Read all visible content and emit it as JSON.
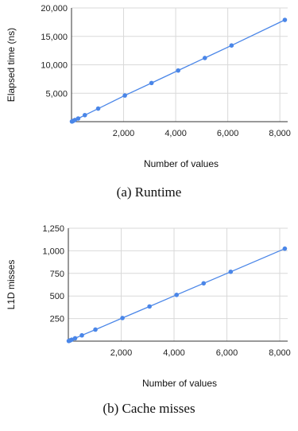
{
  "chart_data": [
    {
      "type": "line",
      "xlabel": "Number of values",
      "ylabel": "Elapsed time (ns)",
      "xlim": [
        0,
        8300
      ],
      "ylim": [
        0,
        20000
      ],
      "xticks": [
        2000,
        4000,
        6000,
        8000
      ],
      "xtick_labels": [
        "2,000",
        "4,000",
        "6,000",
        "8,000"
      ],
      "yticks": [
        5000,
        10000,
        15000,
        20000
      ],
      "ytick_labels": [
        "5,000",
        "10,000",
        "15,000",
        "20,000"
      ],
      "grid": true,
      "series": [
        {
          "color": "#4a86e8",
          "x": [
            16,
            32,
            64,
            128,
            256,
            512,
            1024,
            2048,
            3072,
            4096,
            5120,
            6144,
            8192
          ],
          "y": [
            30,
            70,
            140,
            290,
            560,
            1150,
            2300,
            4600,
            6800,
            9000,
            11200,
            13400,
            17900
          ]
        }
      ]
    },
    {
      "type": "line",
      "xlabel": "Number of values",
      "ylabel": "L1D misses",
      "xlim": [
        0,
        8300
      ],
      "ylim": [
        0,
        1250
      ],
      "xticks": [
        2000,
        4000,
        6000,
        8000
      ],
      "xtick_labels": [
        "2,000",
        "4,000",
        "6,000",
        "8,000"
      ],
      "yticks": [
        250,
        500,
        750,
        1000,
        1250
      ],
      "ytick_labels": [
        "250",
        "500",
        "750",
        "1,000",
        "1,250"
      ],
      "grid": true,
      "series": [
        {
          "color": "#4a86e8",
          "x": [
            16,
            32,
            64,
            128,
            256,
            512,
            1024,
            2048,
            3072,
            4096,
            5120,
            6144,
            8192
          ],
          "y": [
            2,
            4,
            8,
            16,
            32,
            64,
            128,
            256,
            384,
            512,
            640,
            768,
            1024
          ]
        }
      ]
    }
  ],
  "captions": {
    "a": "(a) Runtime",
    "b": "(b) Cache misses"
  }
}
